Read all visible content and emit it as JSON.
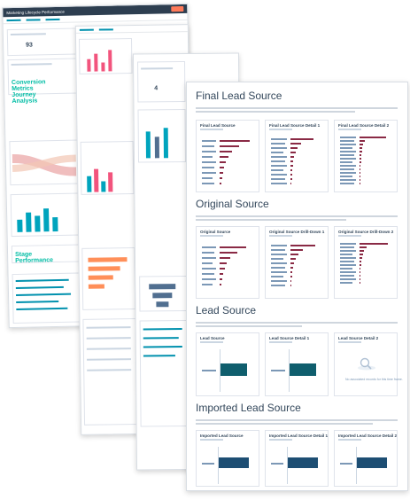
{
  "background_sheet_a": {
    "header_title": "Marketing Lifecycle Performance",
    "flow_label": "Conversion Metrics Journey Analysis",
    "stage_label": "Stage Performance"
  },
  "front_sheet": {
    "sections": [
      {
        "title": "Final Lead Source",
        "panels": [
          "Final Lead Source",
          "Final Lead Source Detail 1",
          "Final Lead Source Detail 2"
        ]
      },
      {
        "title": "Original Source",
        "panels": [
          "Original Source",
          "Original Source Drill-Down 1",
          "Original Source Drill-Down 2"
        ]
      },
      {
        "title": "Lead Source",
        "panels": [
          "Lead Source",
          "Lead Source Detail 1",
          "Lead Source Detail 2"
        ],
        "empty_state": "No associated records for this time frame."
      },
      {
        "title": "Imported Lead Source",
        "panels": [
          "Imported Lead Source",
          "Imported Lead Source Detail 1",
          "Imported Lead Source Detail 2"
        ]
      }
    ]
  },
  "colors": {
    "final_lead_bars": "#8a2a45",
    "lead_source_bars": "#0f5e6d",
    "imported_bars": "#1d4e73",
    "accent": "#ff7a59"
  }
}
